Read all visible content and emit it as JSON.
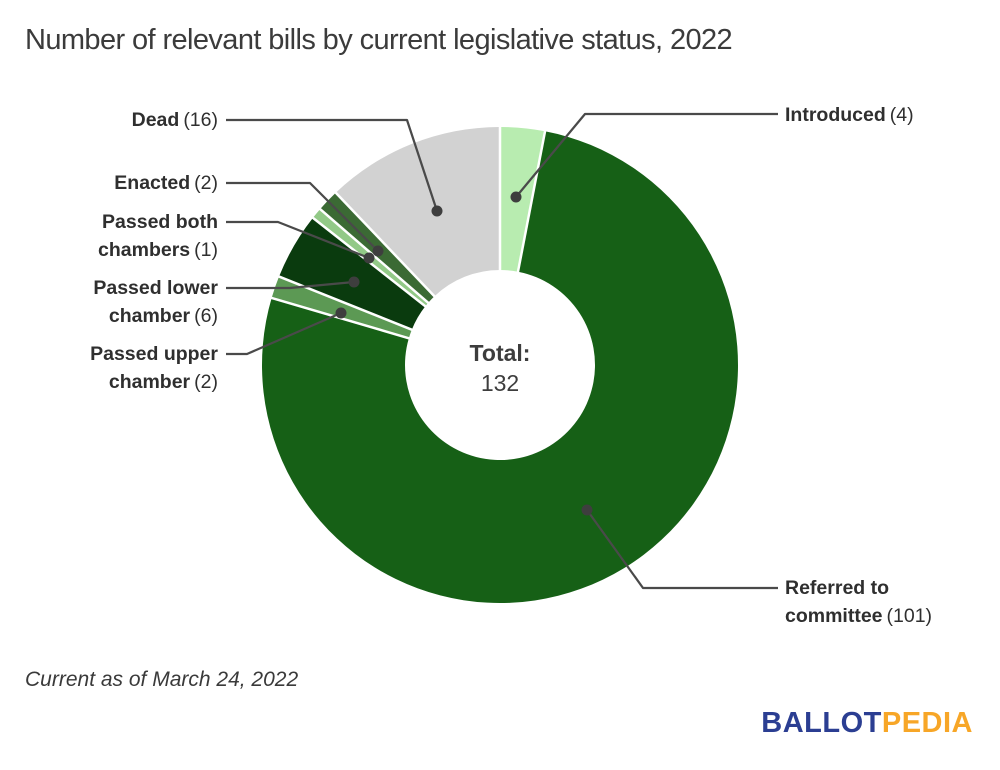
{
  "title": "Number of relevant bills by current legislative status, 2022",
  "footnote": "Current as of March 24, 2022",
  "logo": {
    "text_blue": "BALLOT",
    "text_orange": "PEDIA",
    "color_blue": "#2b3e92",
    "color_orange": "#f7a627"
  },
  "donut_center": {
    "label": "Total:",
    "value": "132"
  },
  "chart_data": {
    "type": "pie",
    "variant": "donut",
    "title": "Number of relevant bills by current legislative status, 2022",
    "total": 132,
    "direction": "clockwise",
    "start_angle_deg": 0,
    "center_label": "Total:",
    "center_value": 132,
    "segments": [
      {
        "label": "Introduced",
        "value": 4,
        "count_label": "(4)",
        "color": "#b8ecb0"
      },
      {
        "label": "Referred to committee",
        "value": 101,
        "count_label": "(101)",
        "color": "#166016"
      },
      {
        "label": "Passed upper chamber",
        "value": 2,
        "count_label": "(2)",
        "color": "#5c9954"
      },
      {
        "label": "Passed lower chamber",
        "value": 6,
        "count_label": "(6)",
        "color": "#0a3b0e"
      },
      {
        "label": "Passed both chambers",
        "value": 1,
        "count_label": "(1)",
        "color": "#92c987"
      },
      {
        "label": "Enacted",
        "value": 2,
        "count_label": "(2)",
        "color": "#3b6a34"
      },
      {
        "label": "Dead",
        "value": 16,
        "count_label": "(16)",
        "color": "#d2d2d2"
      }
    ]
  }
}
